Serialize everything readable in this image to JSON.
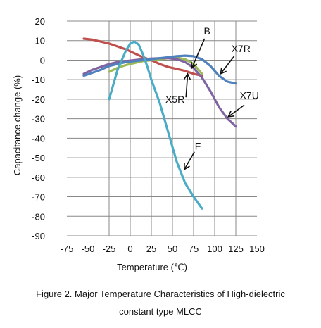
{
  "chart_data": {
    "type": "line",
    "xlabel": "Temperature (℃)",
    "ylabel": "Capacitance change (%)",
    "xlim": [
      -75,
      150
    ],
    "ylim": [
      -90,
      20
    ],
    "x_ticks": [
      "-75",
      "-50",
      "-25",
      "0",
      "25",
      "50",
      "75",
      "100",
      "125",
      "150"
    ],
    "y_ticks": [
      "20",
      "10",
      "0",
      "-10",
      "-20",
      "-30",
      "-40",
      "-50",
      "-60",
      "-70",
      "-80",
      "-90"
    ],
    "grid": true,
    "series": [
      {
        "name": "F",
        "color": "#4bacc6",
        "x": [
          -25,
          -15,
          -5,
          0,
          5,
          10,
          15,
          20,
          25,
          35,
          45,
          55,
          65,
          75,
          85
        ],
        "y": [
          -20,
          -5,
          5,
          8.5,
          9.5,
          8,
          3,
          -3,
          -10,
          -22,
          -37,
          -52,
          -63,
          -70,
          -76
        ]
      },
      {
        "name": "B",
        "color": "#9bbb59",
        "x": [
          -25,
          -15,
          -5,
          5,
          15,
          25,
          35,
          45,
          55,
          65,
          75,
          85
        ],
        "y": [
          -6,
          -4,
          -2.5,
          -1.5,
          -0.5,
          0,
          0.5,
          1,
          1.2,
          0.5,
          -2,
          -7
        ]
      },
      {
        "name": "X5R",
        "color": "#c0504d",
        "x": [
          -55,
          -45,
          -35,
          -25,
          -15,
          -5,
          5,
          15,
          25,
          35,
          45,
          55,
          65,
          75,
          85
        ],
        "y": [
          11,
          10.5,
          9.5,
          8.5,
          7,
          5.5,
          3.5,
          1.5,
          0,
          -2,
          -3.5,
          -4.5,
          -5.5,
          -7,
          -8
        ]
      },
      {
        "name": "X7R",
        "color": "#4f81bd",
        "x": [
          -55,
          -45,
          -35,
          -25,
          -15,
          -5,
          5,
          15,
          25,
          35,
          45,
          55,
          65,
          75,
          85,
          95,
          105,
          115,
          125
        ],
        "y": [
          -8,
          -6.5,
          -5,
          -3,
          -2,
          -1,
          -0.5,
          0,
          0.5,
          1,
          1.5,
          2,
          2.3,
          2,
          0.5,
          -3,
          -8,
          -11,
          -12
        ]
      },
      {
        "name": "X7U",
        "color": "#8064a2",
        "x": [
          -55,
          -45,
          -35,
          -25,
          -15,
          -5,
          5,
          15,
          25,
          35,
          45,
          55,
          65,
          75,
          85,
          95,
          105,
          115,
          125
        ],
        "y": [
          -7,
          -5,
          -3.5,
          -2,
          -1,
          -0.5,
          0,
          0.5,
          0.8,
          1,
          1,
          0.5,
          -1,
          -4,
          -9,
          -16,
          -24,
          -30,
          -34
        ]
      }
    ]
  },
  "annotations": [
    {
      "label": "B",
      "series": "B"
    },
    {
      "label": "X7R",
      "series": "X7R"
    },
    {
      "label": "X5R",
      "series": "X5R"
    },
    {
      "label": "X7U",
      "series": "X7U"
    },
    {
      "label": "F",
      "series": "F"
    }
  ],
  "caption": {
    "line1": "Figure 2. Major Temperature Characteristics of High-dielectric",
    "line2": "constant type MLCC"
  }
}
